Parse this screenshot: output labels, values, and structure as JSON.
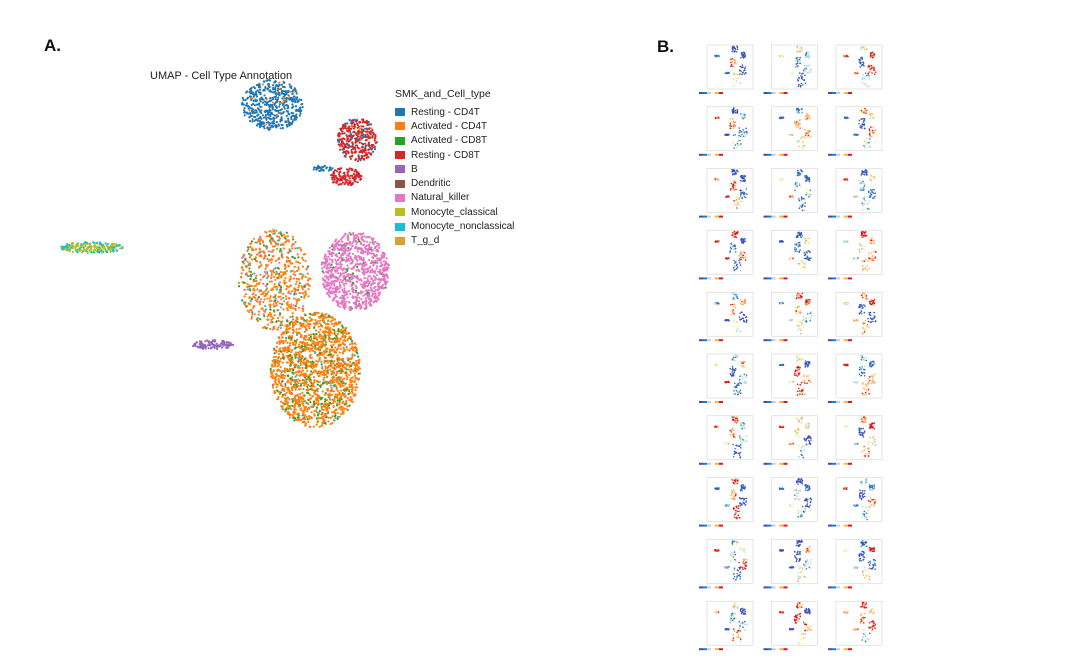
{
  "labels": {
    "a": "A.",
    "b": "B."
  },
  "chart_data": [
    {
      "type": "scatter",
      "title": "UMAP - Cell Type Annotation",
      "legend_title": "SMK_and_Cell_type",
      "legend_placement": "right",
      "xlim": [
        0,
        25
      ],
      "ylim": [
        0,
        31
      ],
      "categories": [
        {
          "name": "Resting - CD4T",
          "color": "#1f77b4"
        },
        {
          "name": "Activated - CD4T",
          "color": "#ff7f0e"
        },
        {
          "name": "Activated - CD8T",
          "color": "#2ca02c"
        },
        {
          "name": "Resting - CD8T",
          "color": "#d62728"
        },
        {
          "name": "B",
          "color": "#9467bd"
        },
        {
          "name": "Dendritic",
          "color": "#8c564b"
        },
        {
          "name": "Natural_killer",
          "color": "#e377c2"
        },
        {
          "name": "Monocyte_classical",
          "color": "#bcbd22"
        },
        {
          "name": "Monocyte_nonclassical",
          "color": "#17becf"
        },
        {
          "name": "T_g_d",
          "color": "#d4a237"
        }
      ],
      "clusters": [
        {
          "cx": 18.1,
          "cy": 29.6,
          "sx": 1.7,
          "sy": 1.4,
          "n": 500,
          "mix": [
            [
              0,
              0.95
            ],
            [
              1,
              0.05
            ]
          ]
        },
        {
          "cx": 25.2,
          "cy": 26.7,
          "sx": 1.1,
          "sy": 1.2,
          "n": 350,
          "mix": [
            [
              3,
              0.75
            ],
            [
              0,
              0.15
            ],
            [
              1,
              0.05
            ],
            [
              5,
              0.05
            ]
          ]
        },
        {
          "cx": 24.2,
          "cy": 23.6,
          "sx": 0.9,
          "sy": 0.5,
          "n": 120,
          "mix": [
            [
              3,
              1
            ]
          ]
        },
        {
          "cx": 22.3,
          "cy": 24.3,
          "sx": 0.6,
          "sy": 0.15,
          "n": 30,
          "mix": [
            [
              0,
              1
            ]
          ]
        },
        {
          "cx": 3.0,
          "cy": 17.7,
          "sx": 1.8,
          "sy": 0.3,
          "n": 220,
          "mix": [
            [
              7,
              0.6
            ],
            [
              8,
              0.4
            ]
          ]
        },
        {
          "cx": 13.1,
          "cy": 9.6,
          "sx": 1.2,
          "sy": 0.25,
          "n": 110,
          "mix": [
            [
              4,
              1
            ]
          ]
        },
        {
          "cx": 25.0,
          "cy": 15.7,
          "sx": 1.9,
          "sy": 2.2,
          "n": 900,
          "mix": [
            [
              6,
              0.95
            ],
            [
              2,
              0.05
            ]
          ]
        },
        {
          "cx": 21.7,
          "cy": 7.5,
          "sx": 2.5,
          "sy": 3.2,
          "n": 1700,
          "mix": [
            [
              1,
              0.82
            ],
            [
              2,
              0.15
            ],
            [
              8,
              0.03
            ]
          ]
        },
        {
          "cx": 18.3,
          "cy": 15.0,
          "sx": 2.0,
          "sy": 2.8,
          "n": 650,
          "mix": [
            [
              1,
              0.7
            ],
            [
              6,
              0.12
            ],
            [
              2,
              0.12
            ],
            [
              8,
              0.06
            ]
          ]
        }
      ]
    },
    {
      "type": "scatter",
      "grid_of_panels": {
        "rows": 10,
        "cols": 3
      },
      "color_scale": "spectral"
    }
  ]
}
